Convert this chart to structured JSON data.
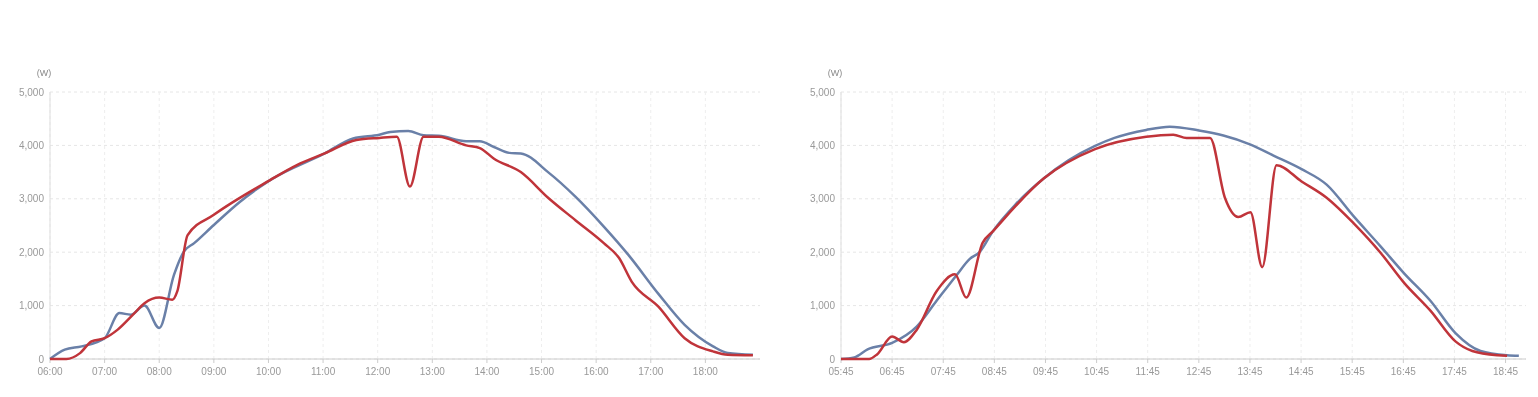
{
  "chart_data": [
    {
      "type": "line",
      "ylabel": "(W)",
      "xlim": [
        6,
        19
      ],
      "ylim": [
        0,
        5000
      ],
      "yticks": [
        {
          "value": 0,
          "label": "0"
        },
        {
          "value": 1000,
          "label": "1,000"
        },
        {
          "value": 2000,
          "label": "2,000"
        },
        {
          "value": 3000,
          "label": "3,000"
        },
        {
          "value": 4000,
          "label": "4,000"
        },
        {
          "value": 5000,
          "label": "5,000"
        }
      ],
      "xticks": [
        {
          "value": 6,
          "label": "06:00"
        },
        {
          "value": 7,
          "label": "07:00"
        },
        {
          "value": 8,
          "label": "08:00"
        },
        {
          "value": 9,
          "label": "09:00"
        },
        {
          "value": 10,
          "label": "10:00"
        },
        {
          "value": 11,
          "label": "11:00"
        },
        {
          "value": 12,
          "label": "12:00"
        },
        {
          "value": 13,
          "label": "13:00"
        },
        {
          "value": 14,
          "label": "14:00"
        },
        {
          "value": 15,
          "label": "15:00"
        },
        {
          "value": 16,
          "label": "16:00"
        },
        {
          "value": 17,
          "label": "17:00"
        },
        {
          "value": 18,
          "label": "18:00"
        }
      ],
      "grid": true,
      "series": [
        {
          "color": "#6a80a8",
          "x": [
            6,
            6.27,
            6.58,
            7,
            7.27,
            7.48,
            7.73,
            8,
            8.27,
            8.45,
            8.64,
            9,
            9.48,
            10.03,
            11.03,
            11.55,
            12.03,
            12.23,
            12.56,
            12.84,
            13.12,
            13.62,
            13.87,
            14.13,
            14.41,
            14.62,
            15.13,
            15.62,
            16.14,
            16.59,
            17.14,
            17.62,
            18.14,
            18.41,
            18.87
          ],
          "values": [
            0,
            175,
            237,
            390,
            860,
            830,
            1000,
            580,
            1575,
            2010,
            2170,
            2510,
            2945,
            3350,
            3850,
            4130,
            4200,
            4250,
            4270,
            4190,
            4180,
            4080,
            4080,
            3970,
            3860,
            3850,
            3490,
            3040,
            2480,
            1950,
            1220,
            640,
            237,
            112,
            80
          ]
        },
        {
          "color": "#c0343a",
          "x": [
            6,
            6.3,
            6.55,
            6.76,
            7,
            7.24,
            7.52,
            7.73,
            8,
            8.24,
            8.33,
            8.52,
            9,
            10.03,
            10.52,
            11.03,
            11.61,
            12.03,
            12.35,
            12.59,
            12.84,
            13.12,
            13.62,
            13.87,
            14.13,
            14.62,
            15.13,
            15.62,
            16.14,
            16.42,
            16.65,
            17.14,
            17.62,
            18.14,
            18.41,
            18.87
          ],
          "values": [
            0,
            0,
            110,
            330,
            390,
            550,
            830,
            1045,
            1150,
            1110,
            1265,
            2320,
            2700,
            3350,
            3630,
            3850,
            4100,
            4140,
            4160,
            3230,
            4160,
            4160,
            4000,
            3950,
            3750,
            3500,
            3010,
            2600,
            2170,
            1890,
            1450,
            980,
            390,
            143,
            80,
            70
          ]
        }
      ]
    },
    {
      "type": "line",
      "ylabel": "(W)",
      "xlim": [
        5.75,
        19.15
      ],
      "ylim": [
        0,
        5000
      ],
      "yticks": [
        {
          "value": 0,
          "label": "0"
        },
        {
          "value": 1000,
          "label": "1,000"
        },
        {
          "value": 2000,
          "label": "2,000"
        },
        {
          "value": 3000,
          "label": "3,000"
        },
        {
          "value": 4000,
          "label": "4,000"
        },
        {
          "value": 5000,
          "label": "5,000"
        }
      ],
      "xticks": [
        {
          "value": 5.75,
          "label": "05:45"
        },
        {
          "value": 6.75,
          "label": "06:45"
        },
        {
          "value": 7.75,
          "label": "07:45"
        },
        {
          "value": 8.75,
          "label": "08:45"
        },
        {
          "value": 9.75,
          "label": "09:45"
        },
        {
          "value": 10.75,
          "label": "10:45"
        },
        {
          "value": 11.75,
          "label": "11:45"
        },
        {
          "value": 12.75,
          "label": "12:45"
        },
        {
          "value": 13.75,
          "label": "13:45"
        },
        {
          "value": 14.75,
          "label": "14:45"
        },
        {
          "value": 15.75,
          "label": "15:45"
        },
        {
          "value": 16.75,
          "label": "16:45"
        },
        {
          "value": 17.75,
          "label": "17:45"
        },
        {
          "value": 18.75,
          "label": "18:45"
        }
      ],
      "grid": true,
      "series": [
        {
          "color": "#6a80a8",
          "x": [
            5.75,
            6.01,
            6.27,
            6.75,
            7.23,
            7.62,
            8.01,
            8.27,
            8.46,
            8.72,
            9.17,
            9.72,
            10.2,
            10.72,
            11.1,
            11.72,
            12.18,
            12.75,
            13.23,
            13.75,
            14.21,
            14.76,
            15.25,
            15.78,
            16.3,
            16.77,
            17.28,
            17.77,
            18.26,
            18.78,
            19.01
          ],
          "values": [
            0,
            30,
            180,
            300,
            605,
            1090,
            1570,
            1875,
            2000,
            2390,
            2900,
            3385,
            3720,
            3990,
            4140,
            4290,
            4350,
            4280,
            4185,
            4020,
            3810,
            3555,
            3265,
            2670,
            2115,
            1600,
            1090,
            485,
            150,
            70,
            60
          ]
        },
        {
          "color": "#c0343a",
          "x": [
            5.75,
            6.3,
            6.46,
            6.75,
            6.98,
            7.23,
            7.62,
            7.98,
            8.2,
            8.52,
            8.72,
            9.72,
            10.72,
            11.72,
            12.25,
            12.51,
            12.97,
            13.26,
            13.52,
            13.76,
            13.99,
            14.27,
            14.76,
            15.25,
            15.78,
            16.3,
            16.77,
            17.28,
            17.77,
            18.1,
            18.6,
            18.78
          ],
          "values": [
            0,
            0,
            90,
            420,
            315,
            545,
            1270,
            1585,
            1150,
            2175,
            2390,
            3385,
            3930,
            4160,
            4200,
            4140,
            4140,
            3020,
            2660,
            2750,
            1720,
            3630,
            3325,
            3020,
            2540,
            1995,
            1420,
            905,
            330,
            150,
            70,
            60
          ]
        }
      ]
    }
  ]
}
